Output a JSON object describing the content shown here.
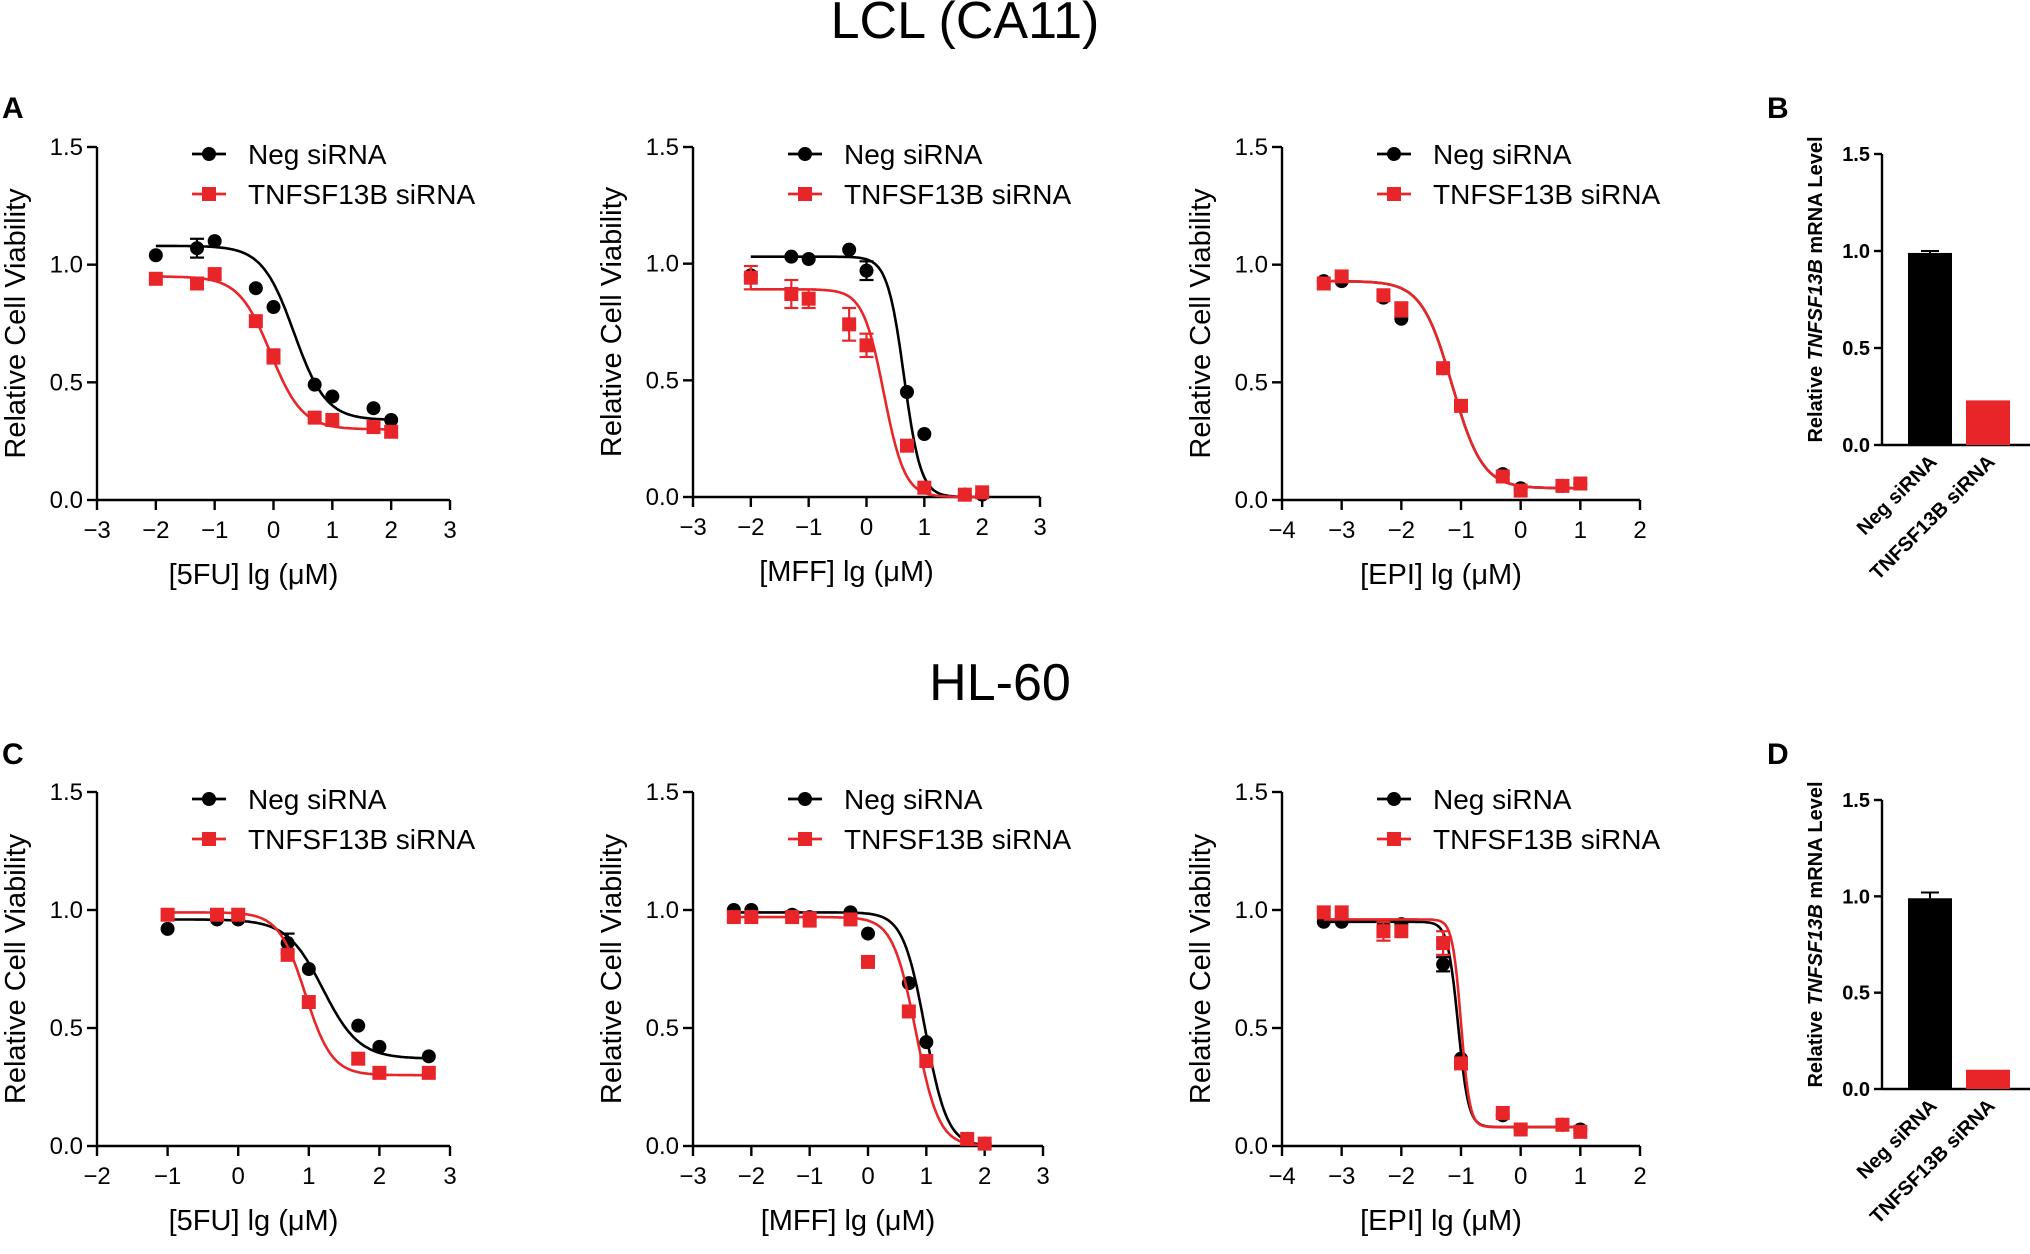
{
  "colors": {
    "neg": "#000000",
    "tnf": "#e8262a"
  },
  "sections": {
    "top_title": "LCL (CA11)",
    "bottom_title": "HL-60"
  },
  "panel_letters": {
    "a": "A",
    "b": "B",
    "c": "C",
    "d": "D"
  },
  "chart_data": [
    {
      "id": "lcl-5fu",
      "type": "scatter",
      "fit": "sigmoid",
      "xlabel": "[5FU] lg (μM)",
      "ylabel": "Relative Cell Viability",
      "xlim": [
        -3,
        3
      ],
      "ylim": [
        0,
        1.5
      ],
      "xticks": [
        -3,
        -2,
        -1,
        0,
        1,
        2,
        3
      ],
      "yticks": [
        0.0,
        0.5,
        1.0,
        1.5
      ],
      "yticklabels": [
        "0.0",
        "0.5",
        "1.0",
        "1.5"
      ],
      "series": [
        {
          "name": "Neg siRNA",
          "key": "neg",
          "marker": "circle",
          "x": [
            -2.0,
            -1.3,
            -1.0,
            -0.3,
            0.0,
            0.7,
            1.0,
            1.7,
            2.0
          ],
          "y": [
            1.04,
            1.07,
            1.1,
            0.9,
            0.82,
            0.49,
            0.44,
            0.39,
            0.34
          ],
          "err": [
            0,
            0.04,
            0,
            0,
            0,
            0,
            0,
            0,
            0
          ],
          "fit": {
            "bottom": 0.34,
            "top": 1.08,
            "ec50": 0.35,
            "hill": 1.6
          }
        },
        {
          "name": "TNFSF13B siRNA",
          "key": "tnf",
          "marker": "square",
          "x": [
            -2.0,
            -1.3,
            -1.0,
            -0.3,
            0.0,
            0.7,
            1.0,
            1.7,
            2.0
          ],
          "y": [
            0.94,
            0.92,
            0.96,
            0.76,
            0.61,
            0.35,
            0.34,
            0.31,
            0.29
          ],
          "err": [
            0,
            0,
            0,
            0,
            0.03,
            0,
            0,
            0,
            0
          ],
          "fit": {
            "bottom": 0.3,
            "top": 0.95,
            "ec50": -0.05,
            "hill": 1.6
          }
        }
      ]
    },
    {
      "id": "lcl-mff",
      "type": "scatter",
      "fit": "sigmoid",
      "xlabel": "[MFF] lg (μM)",
      "ylabel": "Relative Cell Viability",
      "xlim": [
        -3,
        3
      ],
      "ylim": [
        0,
        1.5
      ],
      "xticks": [
        -3,
        -2,
        -1,
        0,
        1,
        2,
        3
      ],
      "yticks": [
        0.0,
        0.5,
        1.0,
        1.5
      ],
      "yticklabels": [
        "0.0",
        "0.5",
        "1.0",
        "1.5"
      ],
      "series": [
        {
          "name": "Neg siRNA",
          "key": "neg",
          "marker": "circle",
          "x": [
            -2.0,
            -1.3,
            -1.0,
            -0.3,
            0.0,
            0.7,
            1.0,
            1.7,
            2.0
          ],
          "y": [
            0.95,
            1.03,
            1.02,
            1.06,
            0.97,
            0.45,
            0.27,
            0.01,
            0.01
          ],
          "err": [
            0,
            0,
            0,
            0,
            0.04,
            0,
            0,
            0,
            0
          ],
          "fit": {
            "bottom": 0.0,
            "top": 1.03,
            "ec50": 0.65,
            "hill": 3.0
          }
        },
        {
          "name": "TNFSF13B siRNA",
          "key": "tnf",
          "marker": "square",
          "x": [
            -2.0,
            -1.3,
            -1.0,
            -0.3,
            0.0,
            0.7,
            1.0,
            1.7,
            2.0
          ],
          "y": [
            0.94,
            0.87,
            0.85,
            0.74,
            0.65,
            0.22,
            0.04,
            0.01,
            0.02
          ],
          "err": [
            0.05,
            0.06,
            0.04,
            0.07,
            0.05,
            0,
            0,
            0,
            0
          ],
          "fit": {
            "bottom": 0.0,
            "top": 0.89,
            "ec50": 0.3,
            "hill": 2.4
          }
        }
      ]
    },
    {
      "id": "lcl-epi",
      "type": "scatter",
      "fit": "sigmoid",
      "xlabel": "[EPI] lg (μM)",
      "ylabel": "Relative Cell Viability",
      "xlim": [
        -4,
        2
      ],
      "ylim": [
        0,
        1.5
      ],
      "xticks": [
        -4,
        -3,
        -2,
        -1,
        0,
        1,
        2
      ],
      "yticks": [
        0.0,
        0.5,
        1.0,
        1.5
      ],
      "yticklabels": [
        "0.0",
        "0.5",
        "1.0",
        "1.5"
      ],
      "series": [
        {
          "name": "Neg siRNA",
          "key": "neg",
          "marker": "circle",
          "x": [
            -3.3,
            -3.0,
            -2.3,
            -2.0,
            -1.3,
            -1.0,
            -0.3,
            0.0,
            0.7,
            1.0
          ],
          "y": [
            0.93,
            0.93,
            0.86,
            0.77,
            0.56,
            0.4,
            0.11,
            0.05,
            0.06,
            0.07
          ],
          "err": [
            0,
            0,
            0,
            0,
            0,
            0,
            0,
            0,
            0,
            0
          ],
          "fit": {
            "bottom": 0.05,
            "top": 0.93,
            "ec50": -1.15,
            "hill": 1.7
          }
        },
        {
          "name": "TNFSF13B siRNA",
          "key": "tnf",
          "marker": "square",
          "x": [
            -3.3,
            -3.0,
            -2.3,
            -2.0,
            -1.3,
            -1.0,
            -0.3,
            0.0,
            0.7,
            1.0
          ],
          "y": [
            0.92,
            0.95,
            0.87,
            0.81,
            0.56,
            0.4,
            0.1,
            0.04,
            0.06,
            0.07
          ],
          "err": [
            0,
            0,
            0,
            0.03,
            0,
            0,
            0,
            0,
            0,
            0
          ],
          "fit": {
            "bottom": 0.05,
            "top": 0.93,
            "ec50": -1.15,
            "hill": 1.7
          }
        }
      ]
    },
    {
      "id": "lcl-mrna",
      "type": "bar",
      "categories": [
        "Neg siRNA",
        "TNFSF13B siRNA"
      ],
      "values": [
        0.99,
        0.23
      ],
      "err": [
        0.01,
        0
      ],
      "ylabel_prefix": "Relative ",
      "ylabel_italic": "TNFSF13B",
      "ylabel_suffix": " mRNA Level",
      "ylim": [
        0,
        1.5
      ],
      "yticks": [
        0.0,
        0.5,
        1.0,
        1.5
      ],
      "yticklabels": [
        "0.0",
        "0.5",
        "1.0",
        "1.5"
      ]
    },
    {
      "id": "hl60-5fu",
      "type": "scatter",
      "fit": "sigmoid",
      "xlabel": "[5FU] lg (μM)",
      "ylabel": "Relative Cell Viability",
      "xlim": [
        -2,
        3
      ],
      "ylim": [
        0,
        1.5
      ],
      "xticks": [
        -2,
        -1,
        0,
        1,
        2,
        3
      ],
      "yticks": [
        0.0,
        0.5,
        1.0,
        1.5
      ],
      "yticklabels": [
        "0.0",
        "0.5",
        "1.0",
        "1.5"
      ],
      "series": [
        {
          "name": "Neg siRNA",
          "key": "neg",
          "marker": "circle",
          "x": [
            -1.0,
            -0.3,
            0.0,
            0.7,
            1.0,
            1.7,
            2.0,
            2.7
          ],
          "y": [
            0.92,
            0.96,
            0.96,
            0.86,
            0.75,
            0.51,
            0.42,
            0.38
          ],
          "err": [
            0,
            0,
            0,
            0.04,
            0,
            0,
            0,
            0
          ],
          "fit": {
            "bottom": 0.37,
            "top": 0.96,
            "ec50": 1.2,
            "hill": 1.7
          }
        },
        {
          "name": "TNFSF13B siRNA",
          "key": "tnf",
          "marker": "square",
          "x": [
            -1.0,
            -0.3,
            0.0,
            0.7,
            1.0,
            1.7,
            2.0,
            2.7
          ],
          "y": [
            0.98,
            0.98,
            0.98,
            0.81,
            0.61,
            0.37,
            0.31,
            0.31
          ],
          "err": [
            0,
            0.02,
            0,
            0,
            0,
            0,
            0,
            0
          ],
          "fit": {
            "bottom": 0.3,
            "top": 0.99,
            "ec50": 0.95,
            "hill": 2.3
          }
        }
      ]
    },
    {
      "id": "hl60-mff",
      "type": "scatter",
      "fit": "sigmoid",
      "xlabel": "[MFF] lg (μM)",
      "ylabel": "Relative Cell Viability",
      "xlim": [
        -3,
        3
      ],
      "ylim": [
        0,
        1.5
      ],
      "xticks": [
        -3,
        -2,
        -1,
        0,
        1,
        2,
        3
      ],
      "yticks": [
        0.0,
        0.5,
        1.0,
        1.5
      ],
      "yticklabels": [
        "0.0",
        "0.5",
        "1.0",
        "1.5"
      ],
      "series": [
        {
          "name": "Neg siRNA",
          "key": "neg",
          "marker": "circle",
          "x": [
            -2.3,
            -2.0,
            -1.3,
            -1.0,
            -0.3,
            0.0,
            0.7,
            1.0,
            1.7,
            2.0
          ],
          "y": [
            1.0,
            1.0,
            0.98,
            0.97,
            0.99,
            0.9,
            0.69,
            0.44,
            0.03,
            0.01
          ],
          "err": [
            0,
            0,
            0,
            0,
            0,
            0,
            0,
            0,
            0,
            0
          ],
          "fit": {
            "bottom": 0.0,
            "top": 0.99,
            "ec50": 0.98,
            "hill": 2.3
          }
        },
        {
          "name": "TNFSF13B siRNA",
          "key": "tnf",
          "marker": "square",
          "x": [
            -2.3,
            -2.0,
            -1.3,
            -1.0,
            -0.3,
            0.0,
            0.7,
            1.0,
            1.7,
            2.0
          ],
          "y": [
            0.97,
            0.97,
            0.97,
            0.96,
            0.96,
            0.78,
            0.57,
            0.36,
            0.03,
            0.01
          ],
          "err": [
            0,
            0,
            0,
            0.03,
            0,
            0,
            0,
            0,
            0,
            0
          ],
          "fit": {
            "bottom": 0.0,
            "top": 0.97,
            "ec50": 0.82,
            "hill": 2.2
          }
        }
      ]
    },
    {
      "id": "hl60-epi",
      "type": "scatter",
      "fit": "sigmoid",
      "xlabel": "[EPI] lg (μM)",
      "ylabel": "Relative Cell Viability",
      "xlim": [
        -4,
        2
      ],
      "ylim": [
        0,
        1.5
      ],
      "xticks": [
        -4,
        -3,
        -2,
        -1,
        0,
        1,
        2
      ],
      "yticks": [
        0.0,
        0.5,
        1.0,
        1.5
      ],
      "yticklabels": [
        "0.0",
        "0.5",
        "1.0",
        "1.5"
      ],
      "series": [
        {
          "name": "Neg siRNA",
          "key": "neg",
          "marker": "circle",
          "x": [
            -3.3,
            -3.0,
            -2.3,
            -2.0,
            -1.3,
            -1.0,
            -0.3,
            0.0,
            0.7,
            1.0
          ],
          "y": [
            0.95,
            0.95,
            0.93,
            0.94,
            0.77,
            0.37,
            0.13,
            0.07,
            0.09,
            0.07
          ],
          "err": [
            0,
            0,
            0,
            0,
            0.03,
            0,
            0,
            0,
            0,
            0
          ],
          "fit": {
            "bottom": 0.08,
            "top": 0.95,
            "ec50": -1.05,
            "hill": 5.0
          }
        },
        {
          "name": "TNFSF13B siRNA",
          "key": "tnf",
          "marker": "square",
          "x": [
            -3.3,
            -3.0,
            -2.3,
            -2.0,
            -1.3,
            -1.0,
            -0.3,
            0.0,
            0.7,
            1.0
          ],
          "y": [
            0.99,
            0.99,
            0.91,
            0.91,
            0.86,
            0.35,
            0.14,
            0.07,
            0.09,
            0.06
          ],
          "err": [
            0,
            0,
            0.04,
            0,
            0.05,
            0,
            0,
            0,
            0,
            0
          ],
          "fit": {
            "bottom": 0.08,
            "top": 0.96,
            "ec50": -1.0,
            "hill": 6.0
          }
        }
      ]
    },
    {
      "id": "hl60-mrna",
      "type": "bar",
      "categories": [
        "Neg siRNA",
        "TNFSF13B siRNA"
      ],
      "values": [
        0.99,
        0.1
      ],
      "err": [
        0.03,
        0
      ],
      "ylabel_prefix": "Relative ",
      "ylabel_italic": "TNFSF13B",
      "ylabel_suffix": " mRNA Level",
      "ylim": [
        0,
        1.5
      ],
      "yticks": [
        0.0,
        0.5,
        1.0,
        1.5
      ],
      "yticklabels": [
        "0.0",
        "0.5",
        "1.0",
        "1.5"
      ]
    }
  ]
}
